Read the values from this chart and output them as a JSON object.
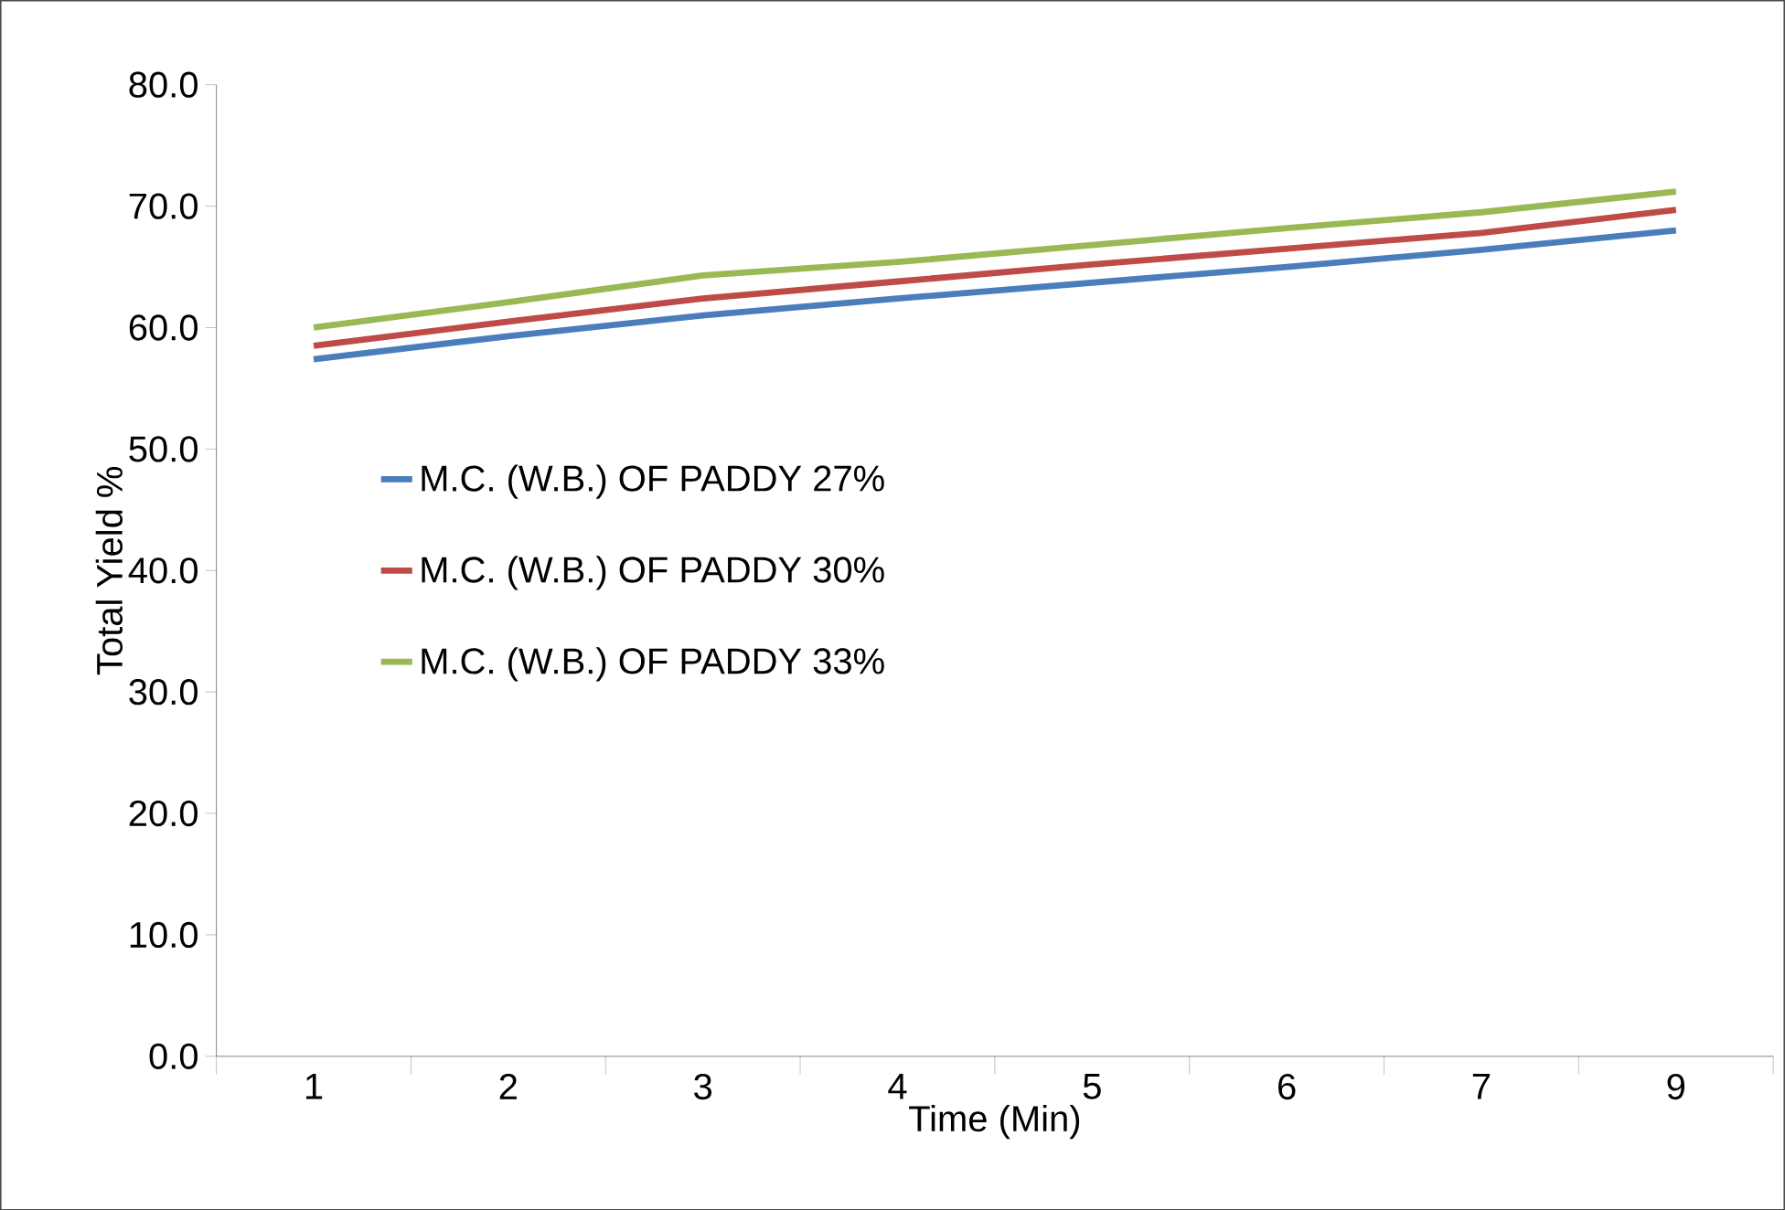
{
  "chart_data": {
    "type": "line",
    "xlabel": "Time (Min)",
    "ylabel": "Total Yield %",
    "categories": [
      "1",
      "2",
      "3",
      "4",
      "5",
      "6",
      "7",
      "9"
    ],
    "series": [
      {
        "name": "M.C. (W.B.) OF PADDY 27%",
        "color": "#4a7ebb",
        "values": [
          57.4,
          59.3,
          61.0,
          62.4,
          63.7,
          65.0,
          66.4,
          68.0
        ]
      },
      {
        "name": "M.C. (W.B.) OF PADDY 30%",
        "color": "#be4b48",
        "values": [
          58.5,
          60.5,
          62.4,
          63.8,
          65.2,
          66.5,
          67.8,
          69.7
        ]
      },
      {
        "name": "M.C. (W.B.) OF PADDY 33%",
        "color": "#98b954",
        "values": [
          60.0,
          62.1,
          64.3,
          65.4,
          66.8,
          68.2,
          69.5,
          71.2
        ]
      }
    ],
    "ylim": [
      0,
      80
    ],
    "yticks": [
      {
        "value": 0,
        "label": "0.0"
      },
      {
        "value": 10,
        "label": "10.0"
      },
      {
        "value": 20,
        "label": "20.0"
      },
      {
        "value": 30,
        "label": "30.0"
      },
      {
        "value": 40,
        "label": "40.0"
      },
      {
        "value": 50,
        "label": "50.0"
      },
      {
        "value": 60,
        "label": "60.0"
      },
      {
        "value": 70,
        "label": "70.0"
      },
      {
        "value": 80,
        "label": "80.0"
      }
    ],
    "grid": false,
    "legend": "left",
    "marker": "none",
    "line_style": "solid"
  }
}
